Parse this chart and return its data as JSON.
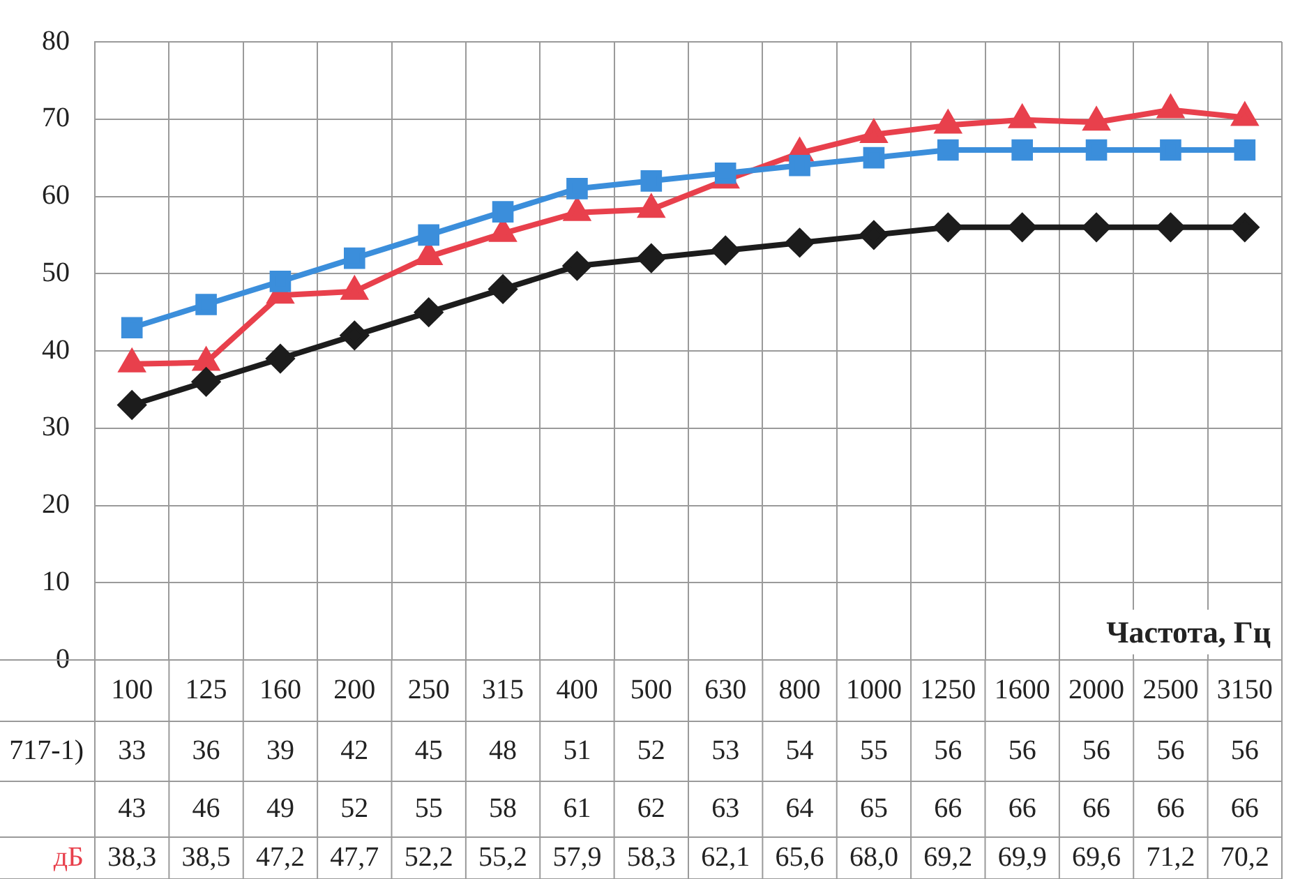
{
  "chart_data": {
    "type": "line",
    "xlabel": "Частота, Гц",
    "categories": [
      "100",
      "125",
      "160",
      "200",
      "250",
      "315",
      "400",
      "500",
      "630",
      "800",
      "1000",
      "1250",
      "1600",
      "2000",
      "2500",
      "3150"
    ],
    "ylim": [
      0,
      80
    ],
    "yticks": [
      0,
      10,
      20,
      30,
      40,
      50,
      60,
      70,
      80
    ],
    "grid": true,
    "series": [
      {
        "name": "717-1)",
        "color": "#1c1c1c",
        "marker": "diamond",
        "values": [
          33,
          36,
          39,
          42,
          45,
          48,
          51,
          52,
          53,
          54,
          55,
          56,
          56,
          56,
          56,
          56
        ],
        "value_labels": [
          "33",
          "36",
          "39",
          "42",
          "45",
          "48",
          "51",
          "52",
          "53",
          "54",
          "55",
          "56",
          "56",
          "56",
          "56",
          "56"
        ]
      },
      {
        "color": "#3b8edb",
        "marker": "square",
        "values": [
          43,
          46,
          49,
          52,
          55,
          58,
          61,
          62,
          63,
          64,
          65,
          66,
          66,
          66,
          66,
          66
        ],
        "value_labels": [
          "43",
          "46",
          "49",
          "52",
          "55",
          "58",
          "61",
          "62",
          "63",
          "64",
          "65",
          "66",
          "66",
          "66",
          "66",
          "66"
        ]
      },
      {
        "name": "дБ",
        "color": "#e8404c",
        "marker": "triangle",
        "values": [
          38.3,
          38.5,
          47.2,
          47.7,
          52.2,
          55.2,
          57.9,
          58.3,
          62.1,
          65.6,
          68.0,
          69.2,
          69.9,
          69.6,
          71.2,
          70.2
        ],
        "value_labels": [
          "38,3",
          "38,5",
          "47,2",
          "47,7",
          "52,2",
          "55,2",
          "57,9",
          "58,3",
          "62,1",
          "65,6",
          "68,0",
          "69,2",
          "69,9",
          "69,6",
          "71,2",
          "70,2"
        ]
      }
    ]
  }
}
